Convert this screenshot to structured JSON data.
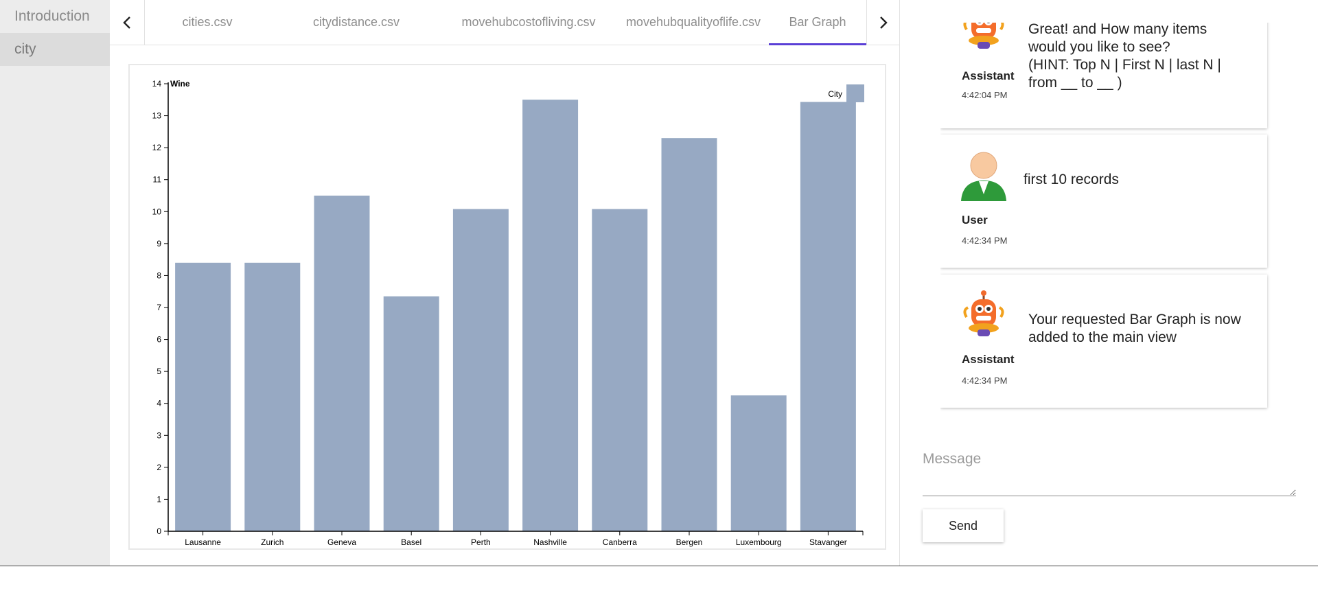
{
  "sidebar": {
    "items": [
      {
        "label": "Introduction"
      },
      {
        "label": "city"
      }
    ]
  },
  "tabs": {
    "items": [
      {
        "label": "cities.csv"
      },
      {
        "label": "citydistance.csv"
      },
      {
        "label": "movehubcostofliving.csv"
      },
      {
        "label": "movehubqualityoflife.csv"
      },
      {
        "label": "Bar Graph"
      }
    ],
    "active": "Bar Graph",
    "accent_color": "#5a3fd6",
    "prev_icon": "chevron-left-icon",
    "next_icon": "chevron-right-icon"
  },
  "chart_data": {
    "type": "bar",
    "ylabel": "Wine",
    "legend_label": "City",
    "legend_position": "top-right",
    "bar_color": "#97a9c3",
    "categories": [
      "Lausanne",
      "Zurich",
      "Geneva",
      "Basel",
      "Perth",
      "Nashville",
      "Canberra",
      "Bergen",
      "Luxembourg",
      "Stavanger"
    ],
    "values": [
      8.4,
      8.4,
      10.5,
      7.35,
      10.08,
      13.5,
      10.08,
      12.3,
      4.25,
      13.43
    ],
    "ylim": [
      0,
      14
    ],
    "yticks": [
      "0",
      "1",
      "2",
      "3",
      "4",
      "5",
      "6",
      "7",
      "8",
      "9",
      "10",
      "11",
      "12",
      "13",
      "14"
    ],
    "grid": false
  },
  "chat": {
    "messages": [
      {
        "role": "Assistant",
        "avatar": "robot-avatar-icon",
        "text_lines": [
          "Great! and How many items",
          "would you like to see?",
          "(HINT: Top N | First N | last N |",
          "from __ to __ )"
        ],
        "time": "4:42:04 PM"
      },
      {
        "role": "User",
        "avatar": "user-avatar-icon",
        "text_lines": [
          "first 10 records"
        ],
        "time": "4:42:34 PM"
      },
      {
        "role": "Assistant",
        "avatar": "robot-avatar-icon",
        "text_lines": [
          "Your requested Bar Graph is now",
          "added to the main view"
        ],
        "time": "4:42:34 PM"
      }
    ],
    "input_placeholder": "Message",
    "input_value": "",
    "send_label": "Send"
  }
}
